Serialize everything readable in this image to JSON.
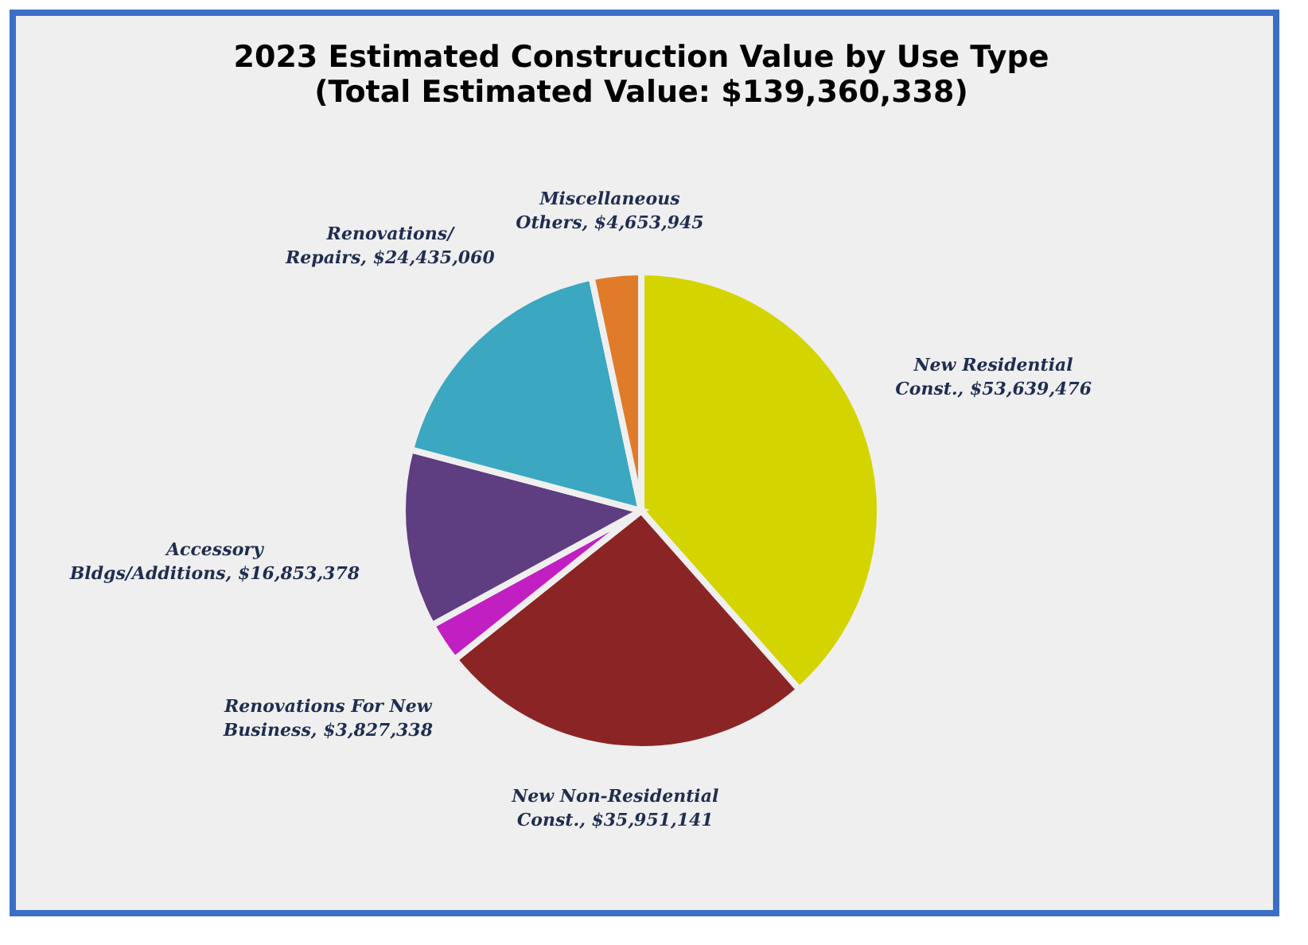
{
  "chart_data": {
    "type": "pie",
    "title": "2023 Estimated Construction Value by Use Type",
    "subtitle": "(Total Estimated Value: $139,360,338)",
    "categories": [
      "New Residential Const.",
      "New Non-Residential Const.",
      "Renovations For New Business",
      "Accessory Bldgs/Additions",
      "Renovations/ Repairs",
      "Miscellaneous Others"
    ],
    "values": [
      53639476,
      35951141,
      3827338,
      16853378,
      24435060,
      4653945
    ],
    "value_labels": [
      "$53,639,476",
      "$35,951,141",
      "$3,827,338",
      "$16,853,378",
      "$24,435,060",
      "$4,653,945"
    ],
    "colors": [
      "#d4d400",
      "#8b2525",
      "#c21fc2",
      "#5e3d80",
      "#3ba7c0",
      "#e07b2a"
    ]
  }
}
